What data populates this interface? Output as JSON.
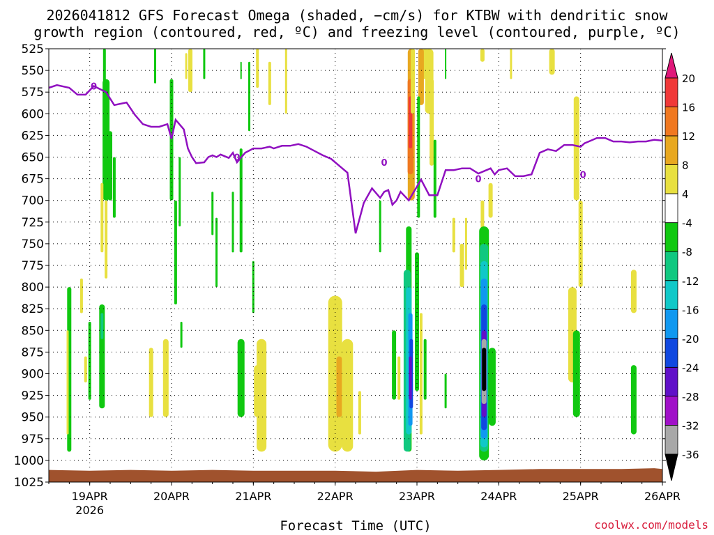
{
  "title_line1": "2026041812 GFS Forecast Omega (shaded, −cm/s) for KTBW with dendritic snow",
  "title_line2": "growth region (contoured, red, ºC) and freezing level (contoured, purple, ºC)",
  "x_axis_label": "Forecast Time (UTC)",
  "credit": "coolwx.com/models",
  "chart_data": {
    "type": "heatmap",
    "y_axis": {
      "ticks": [
        525,
        550,
        575,
        600,
        625,
        650,
        675,
        700,
        725,
        750,
        775,
        800,
        825,
        850,
        875,
        900,
        925,
        950,
        975,
        1000,
        1025
      ],
      "range": [
        525,
        1025
      ]
    },
    "x_axis": {
      "tick_labels": [
        "19APR",
        "20APR",
        "21APR",
        "22APR",
        "23APR",
        "24APR",
        "25APR",
        "26APR"
      ],
      "year_label": "2026",
      "range_days": [
        18.5,
        26.0
      ]
    },
    "colorbar": {
      "labels": [
        "20",
        "16",
        "12",
        "8",
        "4",
        "-4",
        "-8",
        "-12",
        "-16",
        "-20",
        "-24",
        "-28",
        "-32",
        "-36"
      ],
      "colors": [
        "#e0187a",
        "#f03838",
        "#f07820",
        "#e8a820",
        "#e8e040",
        "#ffffff",
        "#10c810",
        "#10c880",
        "#10c8c8",
        "#1098f0",
        "#1048e0",
        "#6010c8",
        "#a010c8",
        "#a8a8a8",
        "#000000"
      ]
    },
    "freezing_level": {
      "label": "0",
      "days": [
        18.5,
        18.6,
        18.75,
        18.85,
        18.95,
        19.05,
        19.2,
        19.3,
        19.45,
        19.55,
        19.65,
        19.75,
        19.85,
        19.95,
        20.0,
        20.05,
        20.15,
        20.2,
        20.25,
        20.3,
        20.4,
        20.45,
        20.5,
        20.55,
        20.6,
        20.7,
        20.75,
        20.8,
        20.9,
        21.0,
        21.1,
        21.2,
        21.25,
        21.35,
        21.45,
        21.55,
        21.65,
        21.75,
        21.85,
        21.95,
        22.05,
        22.15,
        22.25,
        22.35,
        22.45,
        22.55,
        22.6,
        22.65,
        22.7,
        22.75,
        22.8,
        22.9,
        22.95,
        23.05,
        23.15,
        23.25,
        23.35,
        23.45,
        23.55,
        23.65,
        23.75,
        23.85,
        23.9,
        23.95,
        24.0,
        24.1,
        24.2,
        24.3,
        24.4,
        24.5,
        24.6,
        24.7,
        24.8,
        24.9,
        25.0,
        25.05,
        25.1,
        25.2,
        25.3,
        25.4,
        25.5,
        25.6,
        25.7,
        25.8,
        25.9,
        26.0
      ],
      "pressures": [
        570,
        567,
        570,
        578,
        578,
        568,
        575,
        590,
        587,
        601,
        612,
        615,
        615,
        612,
        629,
        607,
        618,
        640,
        650,
        657,
        656,
        650,
        648,
        650,
        647,
        651,
        645,
        656,
        645,
        640,
        640,
        638,
        640,
        637,
        637,
        635,
        638,
        643,
        648,
        652,
        660,
        668,
        738,
        703,
        686,
        697,
        690,
        688,
        705,
        700,
        690,
        700,
        692,
        676,
        694,
        694,
        665,
        665,
        663,
        663,
        669,
        665,
        663,
        670,
        665,
        663,
        672,
        672,
        670,
        645,
        641,
        643,
        636,
        636,
        638,
        634,
        632,
        628,
        628,
        632,
        632,
        633,
        632,
        632,
        630,
        631
      ]
    }
  }
}
